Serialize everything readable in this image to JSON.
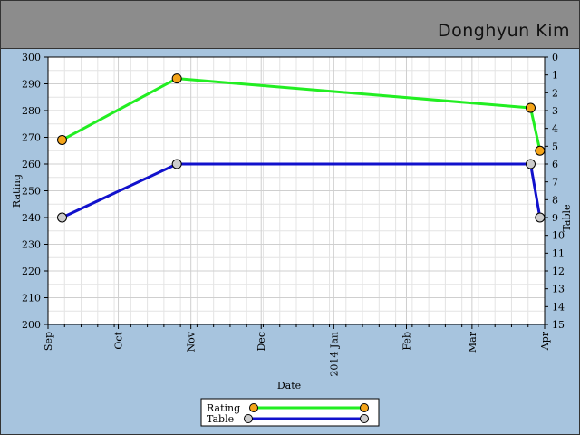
{
  "header": {
    "user_name": "Donghyun Kim"
  },
  "chart_data": {
    "type": "line",
    "xlabel": "Date",
    "ylabel_left": "Rating",
    "ylabel_right": "Table",
    "x_tick_labels": [
      "Sep",
      "Oct",
      "Nov",
      "Dec",
      "2014 Jan",
      "Feb",
      "Mar",
      "Apr"
    ],
    "x_tick_dates": [
      "2013-09-01",
      "2013-10-01",
      "2013-11-01",
      "2013-12-01",
      "2014-01-01",
      "2014-02-01",
      "2014-03-01",
      "2014-04-01"
    ],
    "xlim": [
      "2013-09-01",
      "2014-04-01"
    ],
    "ylim_left": [
      200,
      300
    ],
    "ylim_right": [
      15,
      0
    ],
    "y_ticks_left": [
      200,
      210,
      220,
      230,
      240,
      250,
      260,
      270,
      280,
      290,
      300
    ],
    "y_ticks_right": [
      0,
      1,
      2,
      3,
      4,
      5,
      6,
      7,
      8,
      9,
      10,
      11,
      12,
      13,
      14,
      15
    ],
    "grid": true,
    "legend_position": "bottom-center",
    "series": [
      {
        "name": "Rating",
        "axis": "left",
        "color": "#22ee22",
        "marker_color": "#f5a51a",
        "points": [
          {
            "x": "2013-09-07",
            "y": 269
          },
          {
            "x": "2013-10-26",
            "y": 292
          },
          {
            "x": "2014-03-26",
            "y": 281
          },
          {
            "x": "2014-03-30",
            "y": 265
          }
        ]
      },
      {
        "name": "Table",
        "axis": "right",
        "color": "#1111cc",
        "marker_color": "#cccccc",
        "points": [
          {
            "x": "2013-09-07",
            "y": 9
          },
          {
            "x": "2013-10-26",
            "y": 6
          },
          {
            "x": "2014-03-26",
            "y": 6
          },
          {
            "x": "2014-03-30",
            "y": 9
          }
        ]
      }
    ]
  }
}
